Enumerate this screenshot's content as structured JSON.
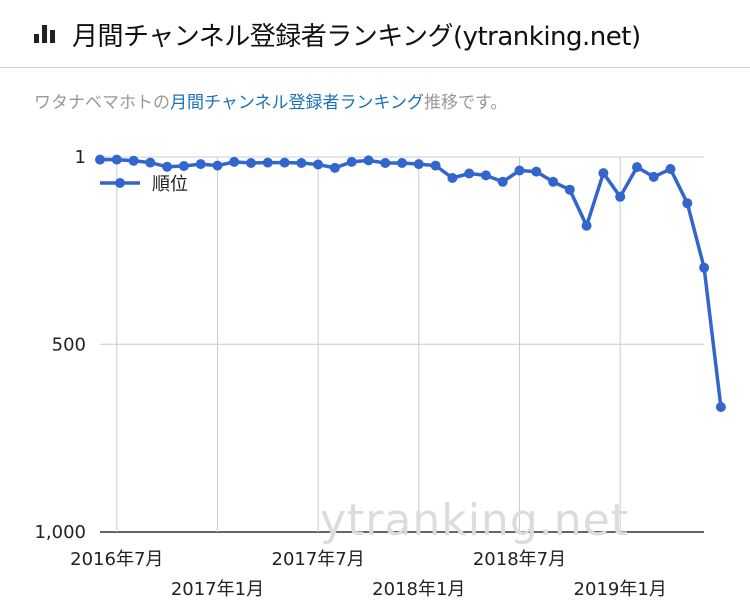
{
  "header": {
    "icon": "bar-chart-icon",
    "title": "月間チャンネル登録者ランキング(ytranking.net)"
  },
  "subtitle": {
    "prefix": "ワタナベマホトの",
    "link": "月間チャンネル登録者ランキング",
    "suffix": "推移です。"
  },
  "watermark": "ytranking.net",
  "chart_data": {
    "type": "line",
    "ylim": [
      1000,
      1
    ],
    "yticks": [
      "1",
      "500",
      "1,000"
    ],
    "ytick_values": [
      1,
      500,
      1000
    ],
    "xticks_upper": [
      "2016年7月",
      "2017年7月",
      "2018年7月"
    ],
    "xticks_lower": [
      "2017年1月",
      "2018年1月",
      "2019年1月"
    ],
    "xtick_index": {
      "2016年7月": 1,
      "2017年1月": 7,
      "2017年7月": 13,
      "2018年1月": 19,
      "2018年7月": 25,
      "2019年1月": 31
    },
    "grid": true,
    "legend": "top-left",
    "color": "#3366cc",
    "series": [
      {
        "name": "順位",
        "values": [
          8,
          8,
          11,
          16,
          27,
          25,
          20,
          24,
          14,
          17,
          16,
          16,
          17,
          21,
          30,
          14,
          10,
          17,
          17,
          20,
          24,
          57,
          45,
          50,
          67,
          37,
          40,
          67,
          88,
          184,
          44,
          107,
          28,
          54,
          33,
          124,
          296,
          667
        ]
      }
    ]
  }
}
